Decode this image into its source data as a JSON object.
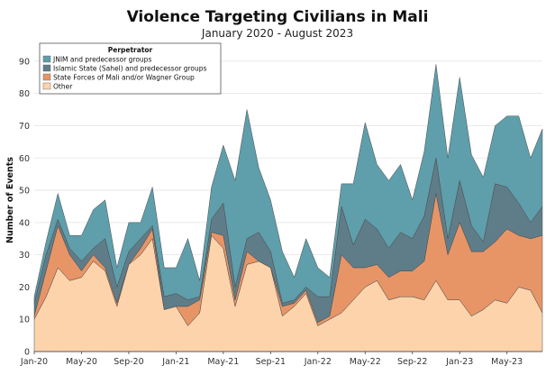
{
  "chart_data": {
    "type": "area",
    "stacked": true,
    "title": "Violence Targeting Civilians in Mali",
    "subtitle": "January 2020 - August 2023",
    "ylabel": "Number of Events",
    "xlabel": "",
    "ylim": [
      0,
      95
    ],
    "yticks": [
      0,
      10,
      20,
      30,
      40,
      50,
      60,
      70,
      80,
      90
    ],
    "grid": "horizontal",
    "legend": {
      "title": "Perpetrator",
      "position": "top-left"
    },
    "x": [
      "2020-01",
      "2020-02",
      "2020-03",
      "2020-04",
      "2020-05",
      "2020-06",
      "2020-07",
      "2020-08",
      "2020-09",
      "2020-10",
      "2020-11",
      "2020-12",
      "2021-01",
      "2021-02",
      "2021-03",
      "2021-04",
      "2021-05",
      "2021-06",
      "2021-07",
      "2021-08",
      "2021-09",
      "2021-10",
      "2021-11",
      "2021-12",
      "2022-01",
      "2022-02",
      "2022-03",
      "2022-04",
      "2022-05",
      "2022-06",
      "2022-07",
      "2022-08",
      "2022-09",
      "2022-10",
      "2022-11",
      "2022-12",
      "2023-01",
      "2023-02",
      "2023-03",
      "2023-04",
      "2023-05",
      "2023-06",
      "2023-07",
      "2023-08"
    ],
    "xtick_labels": [
      {
        "x": "2020-01",
        "label": "Jan-20"
      },
      {
        "x": "2020-05",
        "label": "May-20"
      },
      {
        "x": "2020-09",
        "label": "Sep-20"
      },
      {
        "x": "2021-01",
        "label": "Jan-21"
      },
      {
        "x": "2021-05",
        "label": "May-21"
      },
      {
        "x": "2021-09",
        "label": "Sep-21"
      },
      {
        "x": "2022-01",
        "label": "Jan-22"
      },
      {
        "x": "2022-05",
        "label": "May-22"
      },
      {
        "x": "2022-09",
        "label": "Sep-22"
      },
      {
        "x": "2023-01",
        "label": "Jan-23"
      },
      {
        "x": "2023-05",
        "label": "May-23"
      }
    ],
    "series": [
      {
        "name": "Other",
        "color": "#fdd3ab",
        "values": [
          10,
          17,
          26,
          22,
          23,
          28,
          25,
          14,
          27,
          30,
          35,
          13,
          14,
          8,
          12,
          36,
          32,
          14,
          27,
          28,
          26,
          11,
          14,
          18,
          8,
          10,
          12,
          16,
          20,
          22,
          16,
          17,
          17,
          16,
          22,
          16,
          16,
          11,
          13,
          16,
          15,
          20,
          19,
          12
        ]
      },
      {
        "name": "State Forces of Mali and/or Wagner Group",
        "color": "#e79567",
        "values": [
          1,
          8,
          13,
          8,
          2,
          2,
          1,
          1,
          0,
          2,
          3,
          0,
          0,
          6,
          4,
          1,
          4,
          2,
          4,
          0,
          0,
          3,
          1,
          1,
          1,
          1,
          18,
          10,
          6,
          5,
          7,
          8,
          8,
          12,
          27,
          14,
          24,
          20,
          18,
          18,
          23,
          16,
          16,
          24
        ]
      },
      {
        "name": "Islamic State (Sahel) and predecessor groups",
        "color": "#5f7d89",
        "values": [
          4,
          5,
          2,
          2,
          3,
          2,
          9,
          5,
          4,
          3,
          1,
          4,
          4,
          2,
          1,
          4,
          10,
          4,
          4,
          9,
          5,
          1,
          1,
          1,
          8,
          6,
          15,
          7,
          15,
          11,
          9,
          12,
          10,
          14,
          11,
          5,
          13,
          8,
          3,
          18,
          13,
          10,
          5,
          9
        ]
      },
      {
        "name": "JNIM and predecessor groups",
        "color": "#5f9eab",
        "values": [
          2,
          4,
          8,
          4,
          8,
          12,
          12,
          6,
          9,
          5,
          12,
          9,
          8,
          19,
          5,
          10,
          18,
          33,
          40,
          20,
          16,
          16,
          7,
          15,
          9,
          6,
          7,
          19,
          30,
          20,
          21,
          21,
          12,
          20,
          29,
          25,
          32,
          22,
          20,
          18,
          22,
          27,
          20,
          24
        ]
      }
    ],
    "legend_order": [
      "JNIM and predecessor groups",
      "Islamic State (Sahel) and predecessor groups",
      "State Forces of Mali and/or Wagner Group",
      "Other"
    ]
  }
}
